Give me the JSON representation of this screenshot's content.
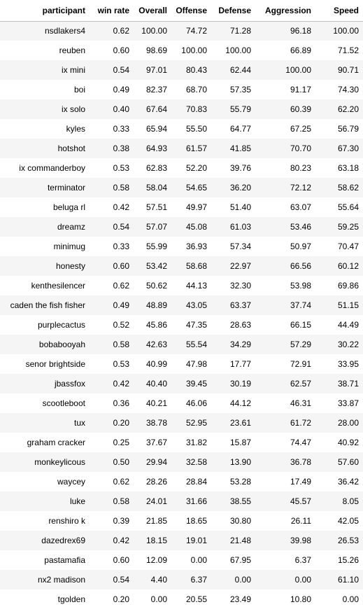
{
  "table": {
    "columns": [
      "participant",
      "win rate",
      "Overall",
      "Offense",
      "Defense",
      "Aggression",
      "Speed"
    ],
    "rows": [
      [
        "nsdlakers4",
        "0.62",
        "100.00",
        "74.72",
        "71.28",
        "96.18",
        "100.00"
      ],
      [
        "reuben",
        "0.60",
        "98.69",
        "100.00",
        "100.00",
        "66.89",
        "71.52"
      ],
      [
        "ix mini",
        "0.54",
        "97.01",
        "80.43",
        "62.44",
        "100.00",
        "90.71"
      ],
      [
        "boi",
        "0.49",
        "82.37",
        "68.70",
        "57.35",
        "91.17",
        "74.30"
      ],
      [
        "ix solo",
        "0.40",
        "67.64",
        "70.83",
        "55.79",
        "60.39",
        "62.20"
      ],
      [
        "kyles",
        "0.33",
        "65.94",
        "55.50",
        "64.77",
        "67.25",
        "56.79"
      ],
      [
        "hotshot",
        "0.38",
        "64.93",
        "61.57",
        "41.85",
        "70.70",
        "67.30"
      ],
      [
        "ix commanderboy",
        "0.53",
        "62.83",
        "52.20",
        "39.76",
        "80.23",
        "63.18"
      ],
      [
        "terminator",
        "0.58",
        "58.04",
        "54.65",
        "36.20",
        "72.12",
        "58.62"
      ],
      [
        "beluga rl",
        "0.42",
        "57.51",
        "49.97",
        "51.40",
        "63.07",
        "55.64"
      ],
      [
        "dreamz",
        "0.54",
        "57.07",
        "45.08",
        "61.03",
        "53.46",
        "59.25"
      ],
      [
        "minimug",
        "0.33",
        "55.99",
        "36.93",
        "57.34",
        "50.97",
        "70.47"
      ],
      [
        "honesty",
        "0.60",
        "53.42",
        "58.68",
        "22.97",
        "66.56",
        "60.12"
      ],
      [
        "kenthesilencer",
        "0.62",
        "50.62",
        "44.13",
        "32.30",
        "53.98",
        "69.86"
      ],
      [
        "caden the fish fisher",
        "0.49",
        "48.89",
        "43.05",
        "63.37",
        "37.74",
        "51.15"
      ],
      [
        "purplecactus",
        "0.52",
        "45.86",
        "47.35",
        "28.63",
        "66.15",
        "44.49"
      ],
      [
        "bobabooyah",
        "0.58",
        "42.63",
        "55.54",
        "34.29",
        "57.29",
        "30.22"
      ],
      [
        "senor brightside",
        "0.53",
        "40.99",
        "47.98",
        "17.77",
        "72.91",
        "33.95"
      ],
      [
        "jbassfox",
        "0.42",
        "40.40",
        "39.45",
        "30.19",
        "62.57",
        "38.71"
      ],
      [
        "scootleboot",
        "0.36",
        "40.21",
        "46.06",
        "44.12",
        "46.31",
        "33.87"
      ],
      [
        "tux",
        "0.20",
        "38.78",
        "52.95",
        "23.61",
        "61.72",
        "28.00"
      ],
      [
        "graham cracker",
        "0.25",
        "37.67",
        "31.82",
        "15.87",
        "74.47",
        "40.92"
      ],
      [
        "monkeylicous",
        "0.50",
        "29.94",
        "32.58",
        "13.90",
        "36.78",
        "57.60"
      ],
      [
        "waycey",
        "0.62",
        "28.26",
        "28.84",
        "53.28",
        "17.49",
        "36.42"
      ],
      [
        "luke",
        "0.58",
        "24.01",
        "31.66",
        "38.55",
        "45.57",
        "8.05"
      ],
      [
        "renshiro k",
        "0.39",
        "21.85",
        "18.65",
        "30.80",
        "26.11",
        "42.05"
      ],
      [
        "dazedrex69",
        "0.42",
        "18.15",
        "19.01",
        "21.48",
        "39.98",
        "26.53"
      ],
      [
        "pastamafia",
        "0.60",
        "12.09",
        "0.00",
        "67.95",
        "6.37",
        "15.26"
      ],
      [
        "nx2 madison",
        "0.54",
        "4.40",
        "6.37",
        "0.00",
        "0.00",
        "61.10"
      ],
      [
        "tgolden",
        "0.20",
        "0.00",
        "20.55",
        "23.49",
        "10.80",
        "0.00"
      ]
    ]
  }
}
